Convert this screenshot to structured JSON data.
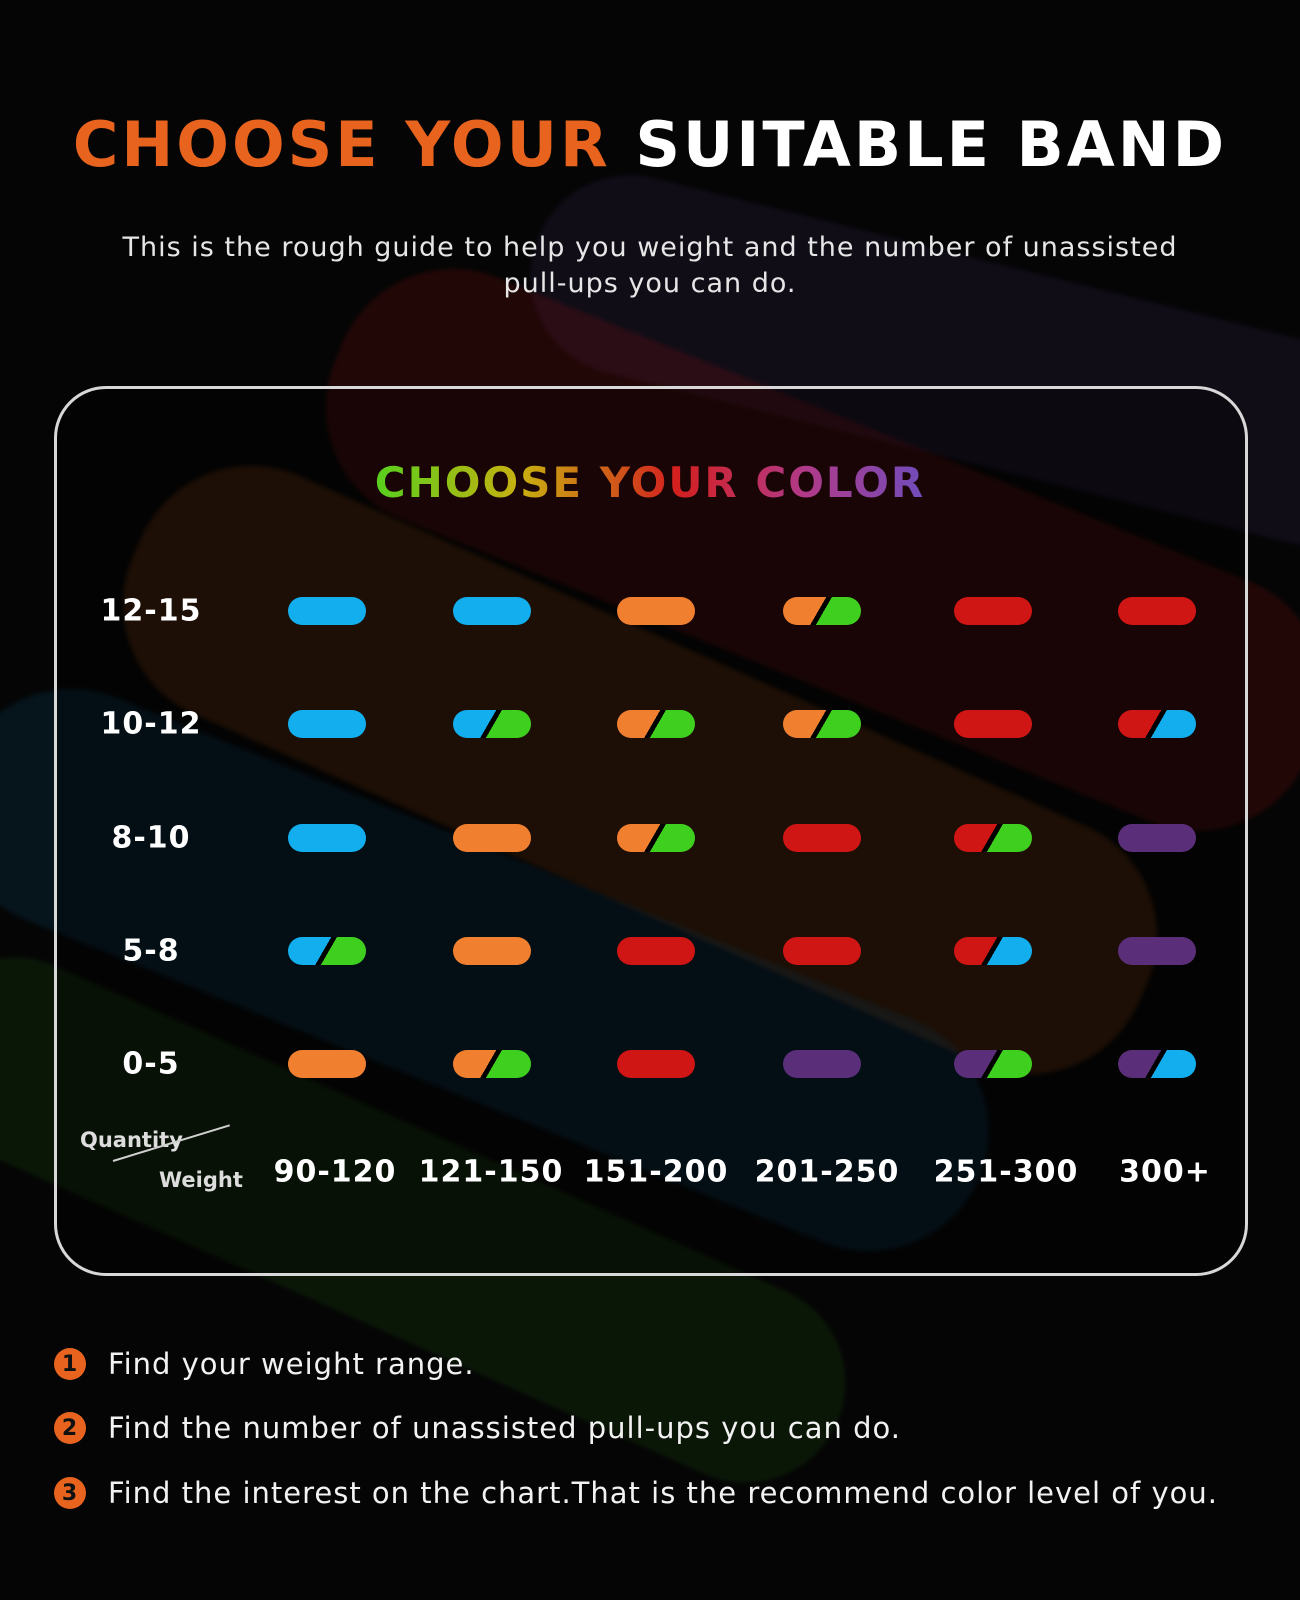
{
  "header": {
    "title_part1": "CHOOSE YOUR",
    "title_part2": "SUITABLE BAND",
    "subtitle_line1": "This is the rough guide to help you weight  and the number of unassisted",
    "subtitle_line2": "pull-ups you can do."
  },
  "chart": {
    "title": "CHOOSE YOUR COLOR",
    "axis_quantity_label": "Quantity",
    "axis_weight_label": "Weight",
    "row_labels": [
      "12-15",
      "10-12",
      "8-10",
      "5-8",
      "0-5"
    ],
    "col_labels": [
      "90-120",
      "121-150",
      "151-200",
      "201-250",
      "251-300",
      "300+"
    ],
    "colors": {
      "blue": "#12aeed",
      "orange": "#f08030",
      "green": "#3fcf1f",
      "red": "#d01515",
      "purple": "#5a2e78"
    },
    "cells": [
      [
        "blue",
        "blue",
        "orange",
        "orange/green",
        "red",
        "red"
      ],
      [
        "blue",
        "blue/green",
        "orange/green",
        "orange/green",
        "red",
        "red/blue"
      ],
      [
        "blue",
        "orange",
        "orange/green",
        "red",
        "red/green",
        "purple"
      ],
      [
        "blue/green",
        "orange",
        "red",
        "red",
        "red/blue",
        "purple"
      ],
      [
        "orange",
        "orange/green",
        "red",
        "purple",
        "purple/green",
        "purple/blue"
      ]
    ]
  },
  "steps": [
    {
      "number": "1",
      "text": "Find your weight range."
    },
    {
      "number": "2",
      "text": "Find the number of unassisted pull-ups you can do."
    },
    {
      "number": "3",
      "text": "Find the interest on the chart.That is the recommend color level of you."
    }
  ],
  "accent_color": "#e8641e"
}
